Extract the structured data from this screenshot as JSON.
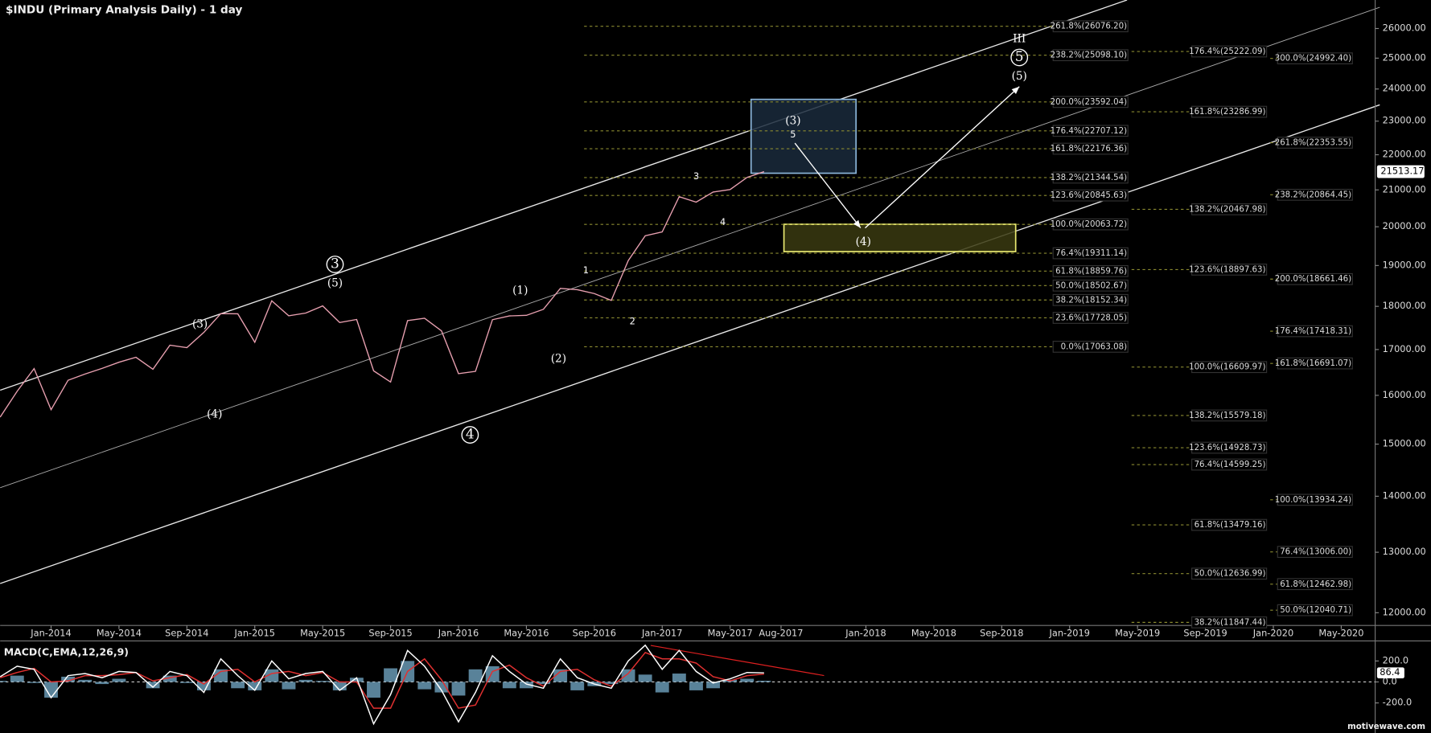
{
  "chart_data": [
    {
      "type": "line",
      "title": "$INDU (Primary Analysis Daily) - 1 day",
      "log_scale": true,
      "x": [
        "2013-10",
        "2013-11",
        "2013-12",
        "2014-01",
        "2014-02",
        "2014-03",
        "2014-04",
        "2014-05",
        "2014-06",
        "2014-07",
        "2014-08",
        "2014-09",
        "2014-10",
        "2014-11",
        "2014-12",
        "2015-01",
        "2015-02",
        "2015-03",
        "2015-04",
        "2015-05",
        "2015-06",
        "2015-07",
        "2015-08",
        "2015-09",
        "2015-10",
        "2015-11",
        "2015-12",
        "2016-01",
        "2016-02",
        "2016-03",
        "2016-04",
        "2016-05",
        "2016-06",
        "2016-07",
        "2016-08",
        "2016-09",
        "2016-10",
        "2016-11",
        "2016-12",
        "2017-01",
        "2017-02",
        "2017-03",
        "2017-04",
        "2017-05",
        "2017-06",
        "2017-07"
      ],
      "series": [
        {
          "name": "$INDU",
          "color": "#e8a0b0",
          "values": [
            15546,
            16086,
            16577,
            15699,
            16322,
            16458,
            16581,
            16717,
            16827,
            16563,
            17098,
            17043,
            17391,
            17828,
            17823,
            17165,
            18133,
            17776,
            17841,
            18011,
            17620,
            17690,
            16528,
            16285,
            17664,
            17720,
            17425,
            16466,
            16517,
            17685,
            17774,
            17787,
            17930,
            18432,
            18401,
            18308,
            18142,
            19124,
            19763,
            19864,
            20812,
            20663,
            20941,
            21009,
            21350,
            21513.17
          ]
        }
      ],
      "xlim": [
        "2013-10",
        "2020-07"
      ],
      "xticks": [
        {
          "value": "2014-01",
          "label": "Jan-2014"
        },
        {
          "value": "2014-05",
          "label": "May-2014"
        },
        {
          "value": "2014-09",
          "label": "Sep-2014"
        },
        {
          "value": "2015-01",
          "label": "Jan-2015"
        },
        {
          "value": "2015-05",
          "label": "May-2015"
        },
        {
          "value": "2015-09",
          "label": "Sep-2015"
        },
        {
          "value": "2016-01",
          "label": "Jan-2016"
        },
        {
          "value": "2016-05",
          "label": "May-2016"
        },
        {
          "value": "2016-09",
          "label": "Sep-2016"
        },
        {
          "value": "2017-01",
          "label": "Jan-2017"
        },
        {
          "value": "2017-05",
          "label": "May-2017"
        },
        {
          "value": "2017-08",
          "label": "Aug-2017"
        },
        {
          "value": "2018-01",
          "label": "Jan-2018"
        },
        {
          "value": "2018-05",
          "label": "May-2018"
        },
        {
          "value": "2018-09",
          "label": "Sep-2018"
        },
        {
          "value": "2019-01",
          "label": "Jan-2019"
        },
        {
          "value": "2019-05",
          "label": "May-2019"
        },
        {
          "value": "2019-09",
          "label": "Sep-2019"
        },
        {
          "value": "2020-01",
          "label": "Jan-2020"
        },
        {
          "value": "2020-05",
          "label": "May-2020"
        }
      ],
      "ylim": [
        11800,
        27000
      ],
      "yticks": [
        {
          "value": 12000,
          "label": "12000.00"
        },
        {
          "value": 13000,
          "label": "13000.00"
        },
        {
          "value": 14000,
          "label": "14000.00"
        },
        {
          "value": 15000,
          "label": "15000.00"
        },
        {
          "value": 16000,
          "label": "16000.00"
        },
        {
          "value": 17000,
          "label": "17000.00"
        },
        {
          "value": 18000,
          "label": "18000.00"
        },
        {
          "value": 19000,
          "label": "19000.00"
        },
        {
          "value": 20000,
          "label": "20000.00"
        },
        {
          "value": 21000,
          "label": "21000.00"
        },
        {
          "value": 22000,
          "label": "22000.00"
        },
        {
          "value": 23000,
          "label": "23000.00"
        },
        {
          "value": 24000,
          "label": "24000.00"
        },
        {
          "value": 25000,
          "label": "25000.00"
        },
        {
          "value": 26000,
          "label": "26000.00"
        }
      ],
      "fib_sets": [
        [
          {
            "price": 26076.2,
            "label": "261.8%(26076.20)"
          },
          {
            "price": 25098.1,
            "label": "238.2%(25098.10)"
          },
          {
            "price": 23592.04,
            "label": "200.0%(23592.04)"
          },
          {
            "price": 22707.12,
            "label": "176.4%(22707.12)"
          },
          {
            "price": 22176.36,
            "label": "161.8%(22176.36)"
          },
          {
            "price": 21344.54,
            "label": "138.2%(21344.54)"
          },
          {
            "price": 20845.63,
            "label": "123.6%(20845.63)"
          },
          {
            "price": 20063.72,
            "label": "100.0%(20063.72)"
          },
          {
            "price": 19311.14,
            "label": "76.4%(19311.14)"
          },
          {
            "price": 18859.76,
            "label": "61.8%(18859.76)"
          },
          {
            "price": 18502.67,
            "label": "50.0%(18502.67)"
          },
          {
            "price": 18152.34,
            "label": "38.2%(18152.34)"
          },
          {
            "price": 17728.05,
            "label": "23.6%(17728.05)"
          },
          {
            "price": 17063.08,
            "label": "0.0%(17063.08)"
          }
        ],
        [
          {
            "price": 25222.09,
            "label": "176.4%(25222.09)"
          },
          {
            "price": 23286.99,
            "label": "161.8%(23286.99)"
          },
          {
            "price": 20467.98,
            "label": "138.2%(20467.98)"
          },
          {
            "price": 18897.63,
            "label": "123.6%(18897.63)"
          },
          {
            "price": 16609.97,
            "label": "100.0%(16609.97)"
          },
          {
            "price": 15579.18,
            "label": "138.2%(15579.18)"
          },
          {
            "price": 14928.73,
            "label": "123.6%(14928.73)"
          },
          {
            "price": 14599.25,
            "label": "76.4%(14599.25)"
          },
          {
            "price": 13479.16,
            "label": "61.8%(13479.16)"
          },
          {
            "price": 12636.99,
            "label": "50.0%(12636.99)"
          },
          {
            "price": 11847.44,
            "label": "38.2%(11847.44)"
          }
        ],
        [
          {
            "price": 24992.4,
            "label": "300.0%(24992.40)"
          },
          {
            "price": 22353.55,
            "label": "261.8%(22353.55)"
          },
          {
            "price": 20864.45,
            "label": "238.2%(20864.45)"
          },
          {
            "price": 18661.46,
            "label": "200.0%(18661.46)"
          },
          {
            "price": 17418.31,
            "label": "176.4%(17418.31)"
          },
          {
            "price": 16691.07,
            "label": "161.8%(16691.07)"
          },
          {
            "price": 13934.24,
            "label": "100.0%(13934.24)"
          },
          {
            "price": 13006.0,
            "label": "76.4%(13006.00)"
          },
          {
            "price": 12462.98,
            "label": "61.8%(12462.98)"
          },
          {
            "price": 12040.71,
            "label": "50.0%(12040.71)"
          }
        ]
      ],
      "wave_labels": [
        "3",
        "(5)",
        "(3)",
        "(4)",
        "4",
        "(1)",
        "(2)",
        "1",
        "2",
        "3",
        "4",
        "(3)",
        "5",
        "III",
        "5",
        "(5)",
        "(4)"
      ],
      "watermark": "motivewave.com"
    },
    {
      "type": "macd",
      "title": "MACD(C,EMA,12,26,9)",
      "x": [
        "2013-10",
        "2013-11",
        "2013-12",
        "2014-01",
        "2014-02",
        "2014-03",
        "2014-04",
        "2014-05",
        "2014-06",
        "2014-07",
        "2014-08",
        "2014-09",
        "2014-10",
        "2014-11",
        "2014-12",
        "2015-01",
        "2015-02",
        "2015-03",
        "2015-04",
        "2015-05",
        "2015-06",
        "2015-07",
        "2015-08",
        "2015-09",
        "2015-10",
        "2015-11",
        "2015-12",
        "2016-01",
        "2016-02",
        "2016-03",
        "2016-04",
        "2016-05",
        "2016-06",
        "2016-07",
        "2016-08",
        "2016-09",
        "2016-10",
        "2016-11",
        "2016-12",
        "2017-01",
        "2017-02",
        "2017-03",
        "2017-04",
        "2017-05",
        "2017-06",
        "2017-07"
      ],
      "series": [
        {
          "color": "#ffffff",
          "values": [
            50,
            150,
            120,
            -150,
            60,
            80,
            40,
            100,
            90,
            -50,
            100,
            60,
            -100,
            220,
            60,
            -80,
            200,
            30,
            80,
            100,
            -80,
            40,
            -400,
            -120,
            300,
            150,
            -80,
            -380,
            -100,
            250,
            100,
            -20,
            -60,
            220,
            40,
            -20,
            -60,
            200,
            350,
            120,
            300,
            100,
            -10,
            30,
            90,
            86.4
          ]
        },
        {
          "color": "#e03030",
          "values": [
            40,
            90,
            130,
            0,
            10,
            60,
            60,
            70,
            90,
            10,
            40,
            70,
            -20,
            100,
            120,
            0,
            80,
            100,
            60,
            90,
            0,
            0,
            -250,
            -250,
            100,
            220,
            20,
            -250,
            -220,
            100,
            160,
            40,
            -40,
            100,
            120,
            20,
            -40,
            80,
            280,
            220,
            220,
            180,
            50,
            10,
            60,
            75
          ]
        },
        {
          "color": "#6fa3bf",
          "values": [
            10,
            60,
            -10,
            -150,
            50,
            20,
            -20,
            30,
            0,
            -60,
            60,
            -10,
            -80,
            120,
            -60,
            -80,
            120,
            -70,
            20,
            10,
            -80,
            40,
            -150,
            130,
            200,
            -70,
            -100,
            -130,
            120,
            150,
            -60,
            -60,
            -20,
            120,
            -80,
            -40,
            -20,
            120,
            70,
            -100,
            80,
            -80,
            -60,
            20,
            30,
            11.4
          ]
        }
      ],
      "ylim": [
        -452,
        391
      ],
      "yticks": [
        {
          "value": 200,
          "label": "200.0"
        },
        {
          "value": 0,
          "label": "0.0"
        },
        {
          "value": -200,
          "label": "-200.0"
        }
      ]
    }
  ]
}
